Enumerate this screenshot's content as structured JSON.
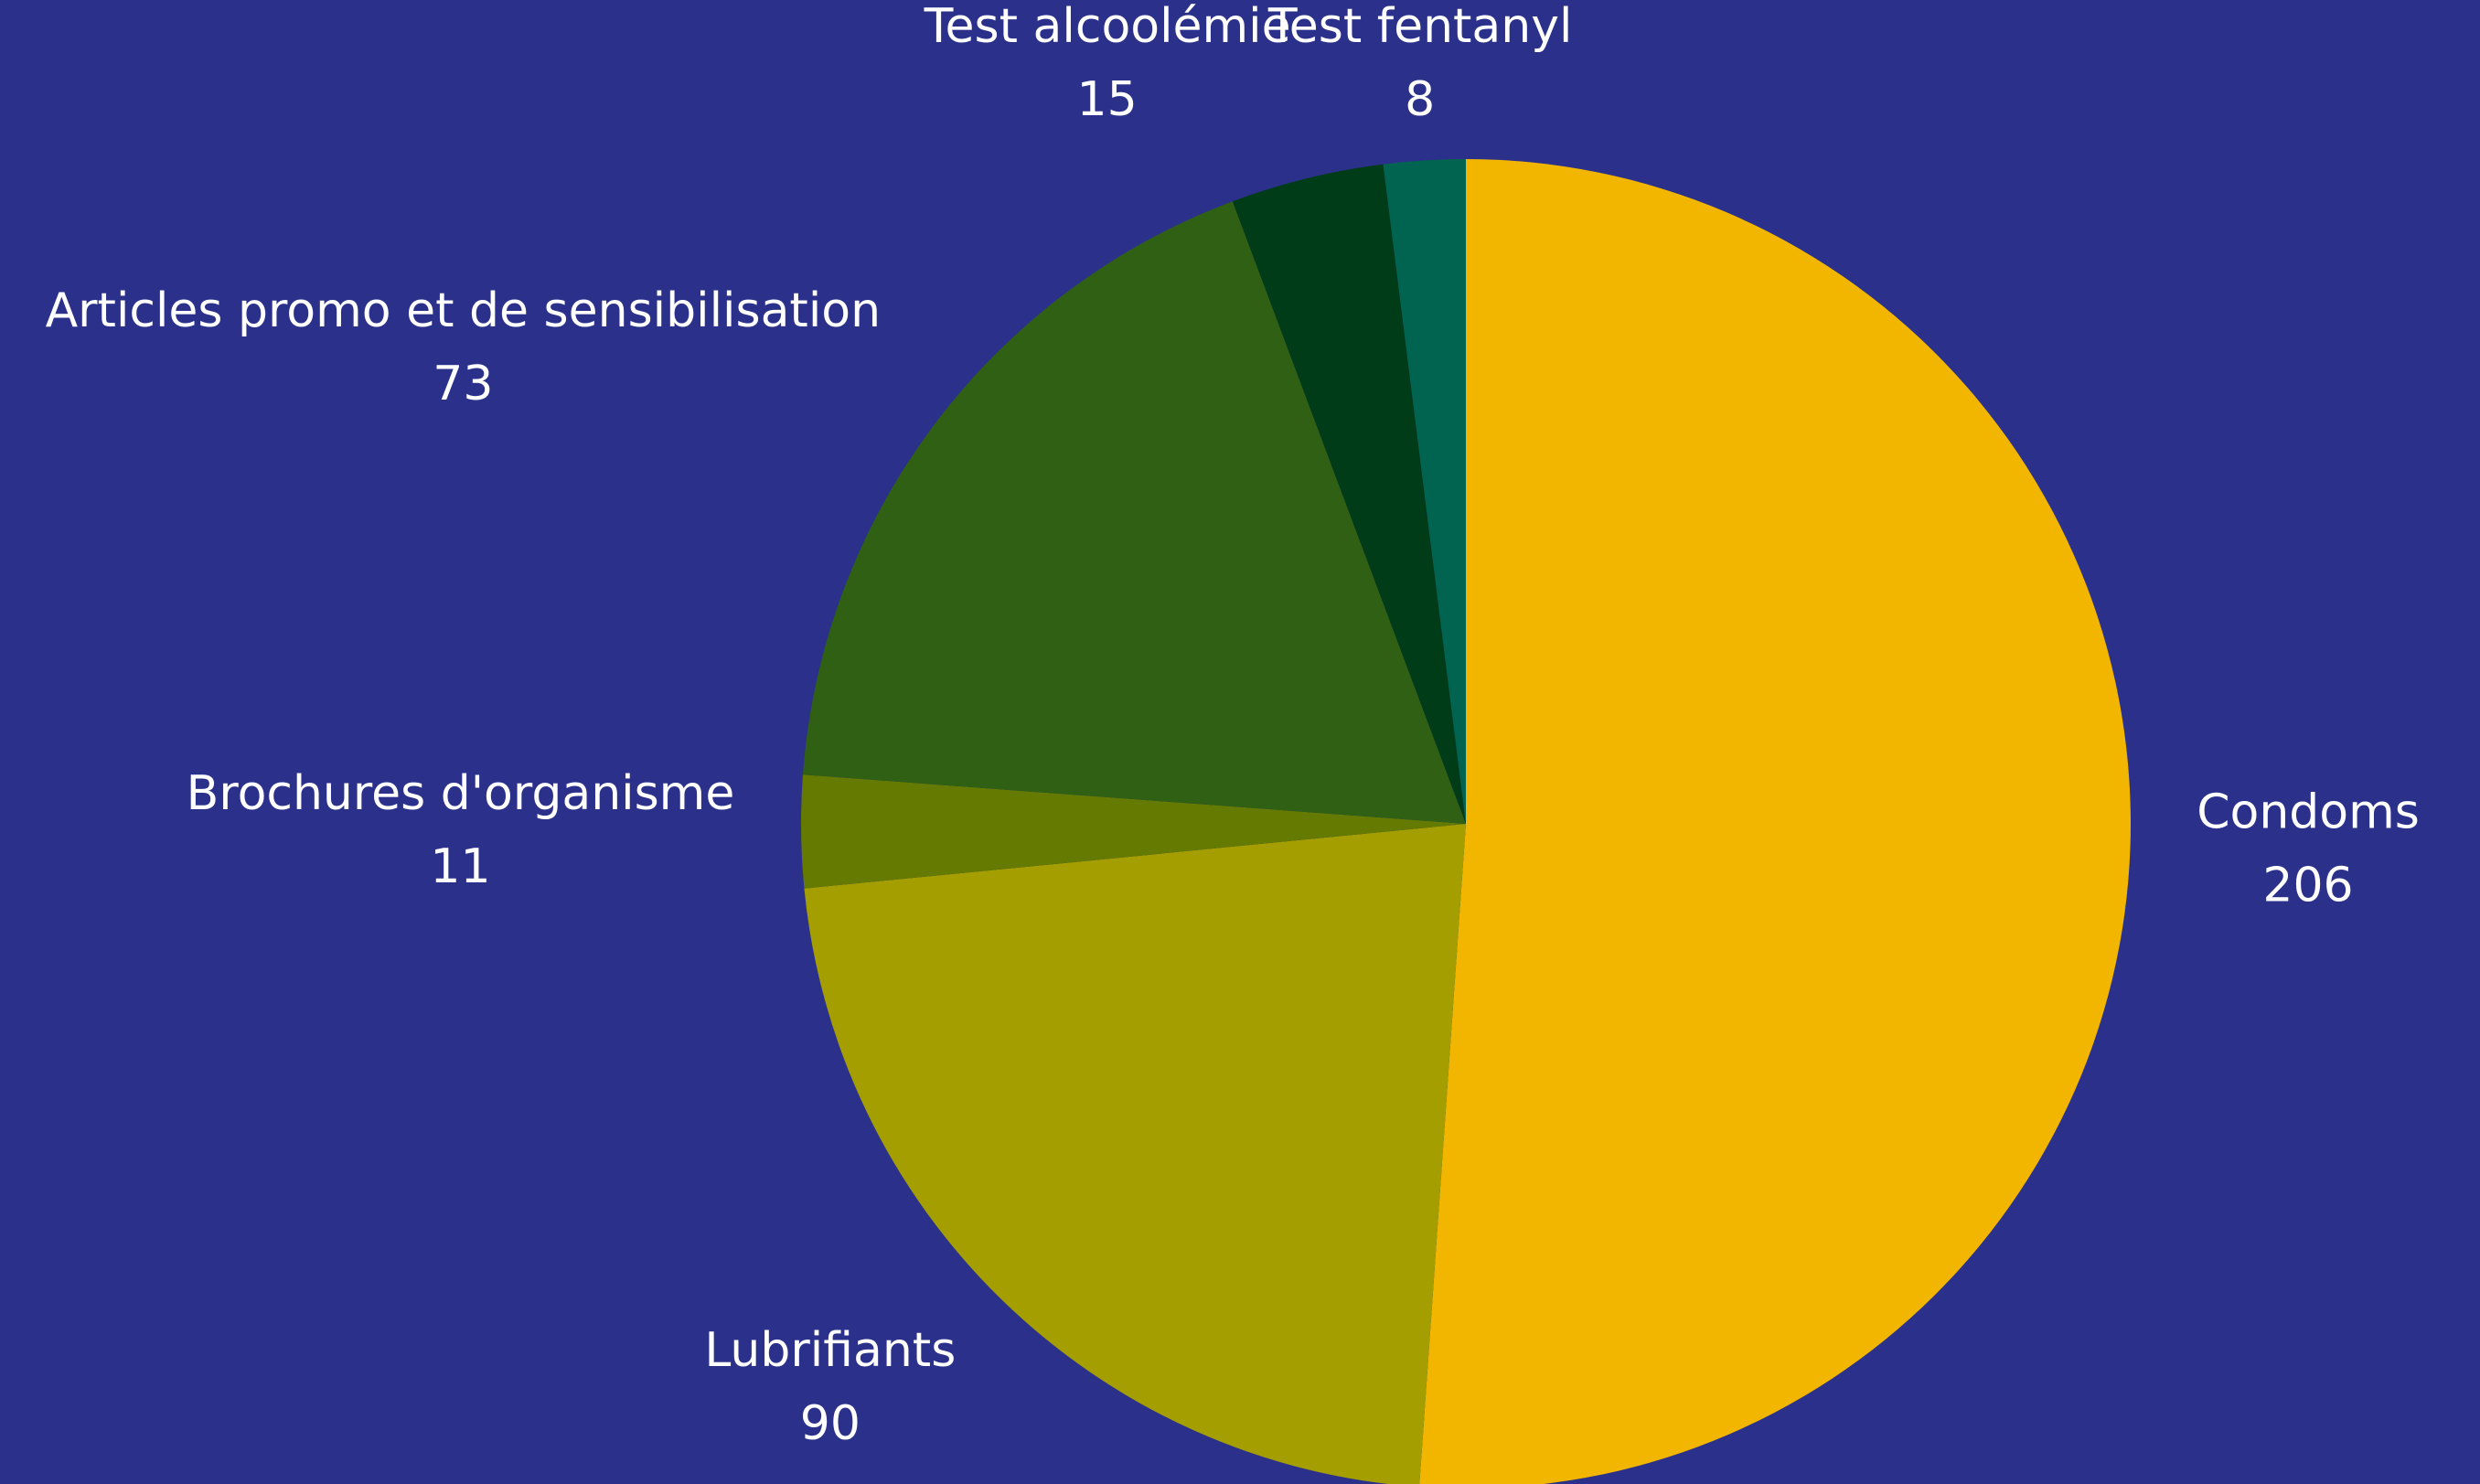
{
  "chart_data": {
    "type": "pie",
    "categories": [
      "Condoms",
      "Lubrifiants",
      "Brochures d'organisme",
      "Articles promo et de sensibilisation",
      "Test alcoolémie",
      "Test fentanyl"
    ],
    "values": [
      206,
      90,
      11,
      73,
      15,
      8
    ],
    "colors": [
      "#f2b600",
      "#a49e00",
      "#647a00",
      "#306014",
      "#003c17",
      "#006450"
    ],
    "background": "#2b318b"
  }
}
